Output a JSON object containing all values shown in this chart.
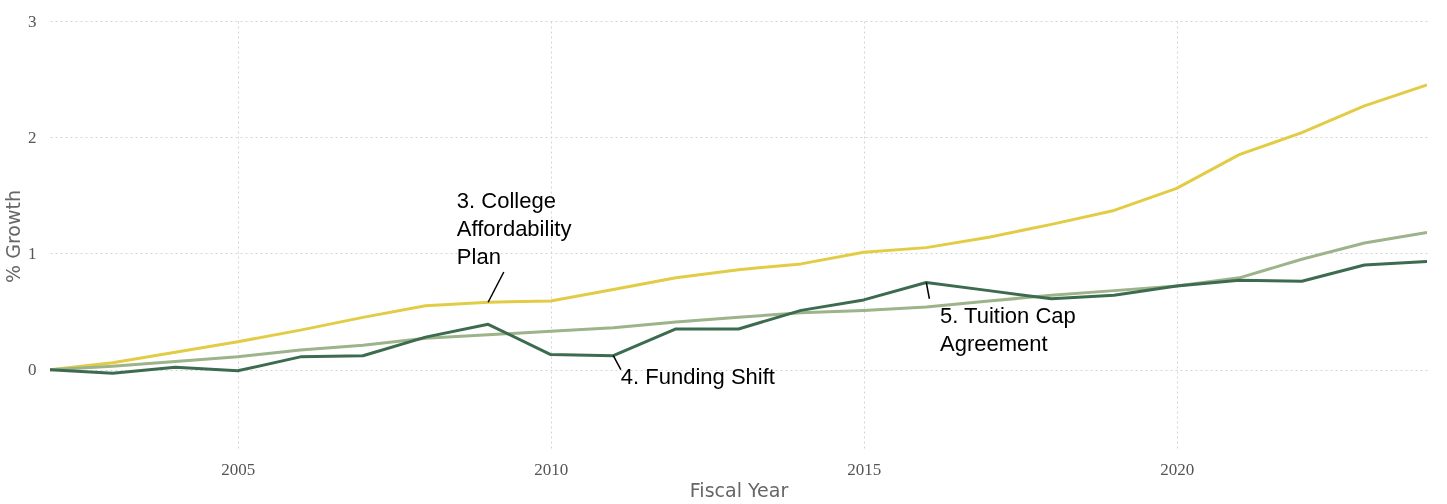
{
  "chart_data": {
    "type": "line",
    "xlabel": "Fiscal Year",
    "ylabel": "% Growth",
    "x": [
      2002,
      2003,
      2004,
      2005,
      2006,
      2007,
      2008,
      2009,
      2010,
      2011,
      2012,
      2013,
      2014,
      2015,
      2016,
      2017,
      2018,
      2019,
      2020,
      2021,
      2022,
      2023,
      2024
    ],
    "series": [
      {
        "color": "#e3cc45",
        "values": [
          0,
          0.06,
          0.15,
          0.24,
          0.34,
          0.45,
          0.55,
          0.58,
          0.59,
          0.69,
          0.79,
          0.86,
          0.91,
          1.01,
          1.05,
          1.14,
          1.25,
          1.37,
          1.56,
          1.85,
          2.04,
          2.27,
          2.45
        ]
      },
      {
        "color": "#9db38a",
        "values": [
          0,
          0.03,
          0.07,
          0.11,
          0.17,
          0.21,
          0.27,
          0.3,
          0.33,
          0.36,
          0.41,
          0.45,
          0.49,
          0.51,
          0.54,
          0.59,
          0.64,
          0.68,
          0.72,
          0.79,
          0.95,
          1.09,
          1.18
        ]
      },
      {
        "color": "#3d6b4f",
        "values": [
          0,
          -0.03,
          0.02,
          -0.01,
          0.11,
          0.12,
          0.28,
          0.39,
          0.13,
          0.12,
          0.35,
          0.35,
          0.51,
          0.6,
          0.75,
          0.68,
          0.61,
          0.64,
          0.72,
          0.77,
          0.76,
          0.9,
          0.93
        ]
      }
    ],
    "annotations": [
      {
        "text": "3. College Affordability Plan",
        "x": 2009,
        "y": 0.58
      },
      {
        "text": "4. Funding Shift",
        "x": 2011,
        "y": 0.12
      },
      {
        "text": "5. Tuition Cap Agreement",
        "x": 2016,
        "y": 0.75
      }
    ],
    "xlim": [
      2002,
      2024
    ],
    "xticks": [
      2005,
      2010,
      2015,
      2020
    ],
    "ylim": [
      -0.7,
      3
    ],
    "yticks": [
      0,
      1,
      2,
      3
    ],
    "grid": true,
    "legend": false,
    "line_style": "solid",
    "marker": "none"
  }
}
